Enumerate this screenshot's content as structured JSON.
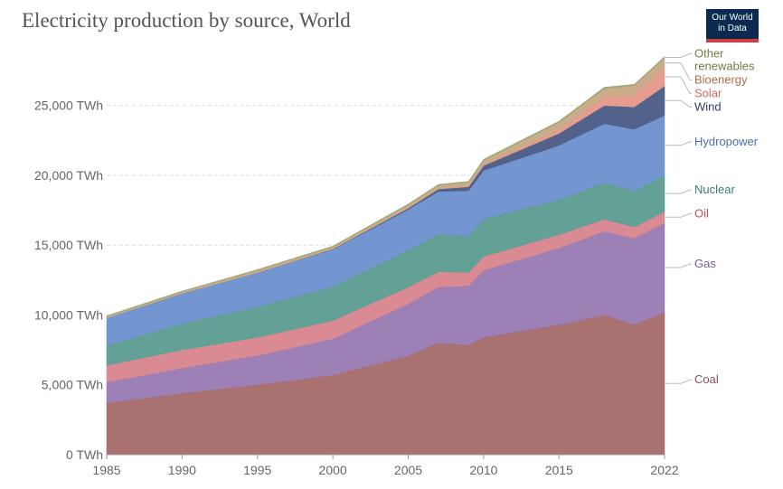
{
  "title": "Electricity production by source, World",
  "logo": {
    "line1": "Our World",
    "line2": "in Data"
  },
  "colors": {
    "Coal": "#a86d6d",
    "Gas": "#9a7cb3",
    "Oil": "#d98790",
    "Nuclear": "#5e9e94",
    "Hydropower": "#6f93cf",
    "Wind": "#4d5d88",
    "Solar": "#e49a8b",
    "Bioenergy": "#caa986",
    "Other renewables": "#9aa87a"
  },
  "label_colors": {
    "Coal": "#8e5050",
    "Gas": "#7b5b95",
    "Oil": "#c0504f",
    "Nuclear": "#3e7d74",
    "Hydropower": "#4a6fb0",
    "Wind": "#2e3f6e",
    "Solar": "#d66a5e",
    "Bioenergy": "#b46b4a",
    "Other renewables": "#6e7f45"
  },
  "chart_data": {
    "type": "area",
    "stacked": true,
    "title": "Electricity production by source, World",
    "x": [
      1985,
      1990,
      1995,
      2000,
      2005,
      2007,
      2009,
      2010,
      2015,
      2018,
      2020,
      2022
    ],
    "y_ticks": [
      "0 TWh",
      "5,000 TWh",
      "10,000 TWh",
      "15,000 TWh",
      "20,000 TWh",
      "25,000 TWh"
    ],
    "x_ticks": [
      "1985",
      "1990",
      "1995",
      "2000",
      "2005",
      "2010",
      "2015",
      "2022"
    ],
    "ylim": [
      0,
      28800
    ],
    "grid": true,
    "series": [
      {
        "name": "Coal",
        "values": [
          3700,
          4400,
          5000,
          5700,
          7100,
          8000,
          7850,
          8400,
          9300,
          10000,
          9300,
          10200
        ]
      },
      {
        "name": "Gas",
        "values": [
          1500,
          1800,
          2100,
          2600,
          3700,
          4000,
          4250,
          4800,
          5500,
          6000,
          6200,
          6400
        ]
      },
      {
        "name": "Oil",
        "values": [
          1200,
          1300,
          1300,
          1300,
          1200,
          1100,
          950,
          1000,
          950,
          850,
          800,
          800
        ]
      },
      {
        "name": "Nuclear",
        "values": [
          1400,
          1900,
          2200,
          2450,
          2650,
          2700,
          2600,
          2700,
          2500,
          2650,
          2600,
          2600
        ]
      },
      {
        "name": "Hydropower",
        "values": [
          2000,
          2150,
          2450,
          2650,
          2900,
          3050,
          3250,
          3450,
          3900,
          4200,
          4400,
          4300
        ]
      },
      {
        "name": "Wind",
        "values": [
          0,
          0,
          0,
          30,
          100,
          170,
          280,
          350,
          850,
          1300,
          1600,
          2100
        ]
      },
      {
        "name": "Solar",
        "values": [
          0,
          0,
          0,
          0,
          5,
          10,
          20,
          30,
          250,
          600,
          850,
          1300
        ]
      },
      {
        "name": "Bioenergy",
        "values": [
          100,
          120,
          150,
          150,
          230,
          260,
          300,
          350,
          550,
          620,
          680,
          700
        ]
      },
      {
        "name": "Other renewables",
        "values": [
          40,
          45,
          45,
          50,
          55,
          60,
          65,
          70,
          75,
          80,
          85,
          90
        ]
      }
    ],
    "label_order": [
      "Other renewables",
      "Bioenergy",
      "Solar",
      "Wind",
      "Hydropower",
      "Nuclear",
      "Oil",
      "Gas",
      "Coal"
    ]
  }
}
